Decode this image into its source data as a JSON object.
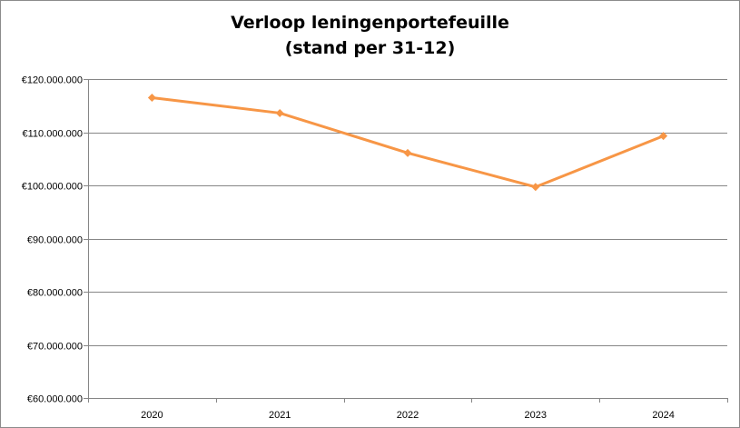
{
  "chart_data": {
    "type": "line",
    "title": "Verloop leningenportefeuille",
    "subtitle": "(stand per 31-12)",
    "categories": [
      "2020",
      "2021",
      "2022",
      "2023",
      "2024"
    ],
    "series": [
      {
        "values": [
          116500000,
          113600000,
          106100000,
          99700000,
          109300000
        ],
        "color": "#f79646",
        "marker": "diamond"
      }
    ],
    "ylim": [
      60000000,
      120000000
    ],
    "ytick_labels": [
      "€60.000.000",
      "€70.000.000",
      "€80.000.000",
      "€90.000.000",
      "€100.000.000",
      "€110.000.000",
      "€120.000.000"
    ],
    "grid": true,
    "legend": "none"
  },
  "colors": {
    "line": "#f79646",
    "gridline": "#868686",
    "border": "#8c8c8c"
  }
}
